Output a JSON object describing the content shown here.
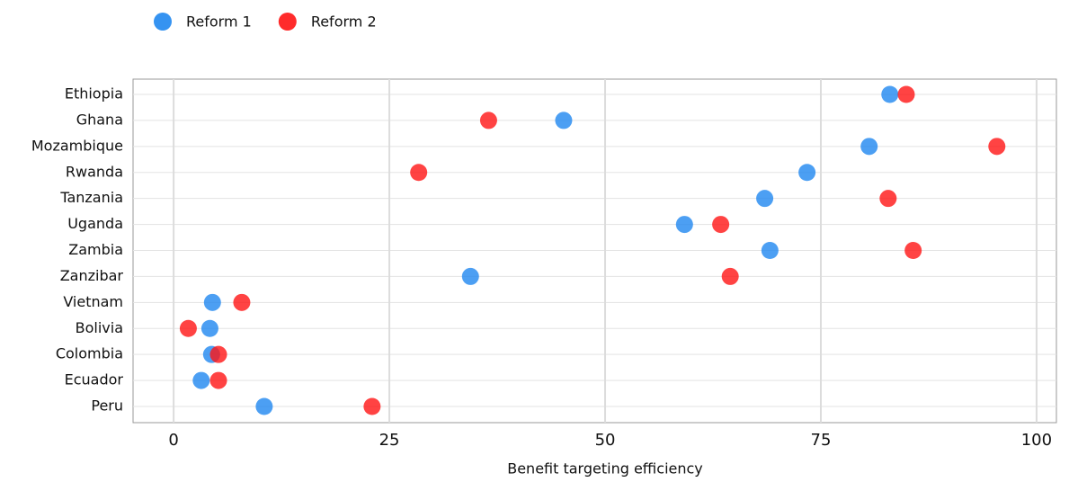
{
  "chart_data": {
    "type": "dot",
    "xlabel": "Benefit targeting efficiency",
    "categories": [
      "Ethiopia",
      "Ghana",
      "Mozambique",
      "Rwanda",
      "Tanzania",
      "Uganda",
      "Zambia",
      "Zanzibar",
      "Vietnam",
      "Bolivia",
      "Colombia",
      "Ecuador",
      "Peru"
    ],
    "series": [
      {
        "name": "Reform 1",
        "color": "#1f87f0",
        "values": [
          83.0,
          45.2,
          80.6,
          73.4,
          68.5,
          59.2,
          69.1,
          34.4,
          4.5,
          4.2,
          4.4,
          3.2,
          10.5
        ]
      },
      {
        "name": "Reform 2",
        "color": "#ff1414",
        "values": [
          84.9,
          36.5,
          95.4,
          28.4,
          82.8,
          63.4,
          85.7,
          64.5,
          7.9,
          1.7,
          5.2,
          5.2,
          23.0
        ]
      }
    ],
    "xlim": [
      -4.7,
      102.3
    ],
    "xticks": [
      0,
      25,
      50,
      75,
      100
    ],
    "grid": true,
    "legend": "top-left"
  }
}
